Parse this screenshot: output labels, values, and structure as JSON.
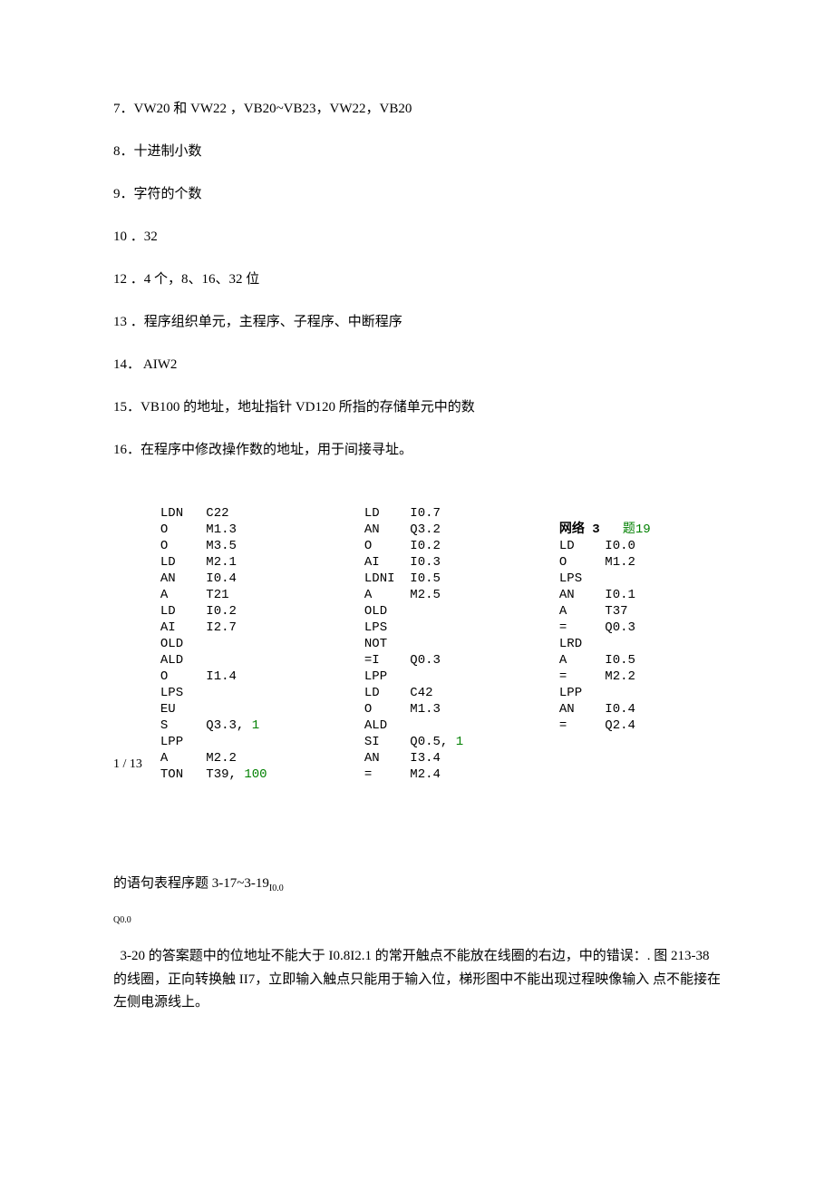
{
  "answers": {
    "a7": "7．VW20 和 VW22 ，VB20~VB23，VW22，VB20",
    "a8": "8．十进制小数",
    "a9": "9．字符的个数",
    "a10": "10 ．32",
    "a12": "12 ．4 个，8、16、32 位",
    "a13": "13 ．程序组织单元，主程序、子程序、中断程序",
    "a14": "14． AIW2",
    "a15": "15．VB100 的地址，地址指针 VD120 所指的存储单元中的数",
    "a16": "16．在程序中修改操作数的地址，用于间接寻址。"
  },
  "page_num": "1 / 13",
  "code_col1": "LDN   C22\nO     M1.3\nO     M3.5\nLD    M2.1\nAN    I0.4\nA     T21\nLD    I0.2\nAI    I2.7\nOLD\nALD\nO     I1.4\nLPS\nEU\nS     Q3.3, ",
  "code_col1_end": "\nLPP\nA     M2.2\nTON   T39, ",
  "code_col1_g1": "1",
  "code_col1_g2": "100",
  "code_col2": "LD    I0.7\nAN    Q3.2\nO     I0.2\nAI    I0.3\nLDNI  I0.5\nA     M2.5\nOLD\nLPS\nNOT\n=I    Q0.3\nLPP\nLD    C42\nO     M1.3\nALD\nSI    Q0.5, ",
  "code_col2_end": "\nAN    I3.4\n=     M2.4",
  "code_col2_g1": "1",
  "code_col3_net": "网络 3",
  "code_col3_q": "   题19",
  "code_col3": "\nLD    I0.0\nO     M1.2\nLPS\nAN    I0.1\nA     T37\n=     Q0.3\nLRD\nA     I0.5\n=     M2.2\nLPP\nAN    I0.4\n=     Q2.4",
  "post1_a": " 的语句表程序题 3-17~3-19",
  "post1_b": "I0.0",
  "post2": "Q0.0",
  "paragraph": " 3-20 的答案题中的位地址不能大于 I0.8I2.1 的常开触点不能放在线圈的右边，中的错误：. 图 213-38 的线圈，正向转换触 II7，立即输入触点只能用于输入位，梯形图中不能出现过程映像输入 点不能接在左侧电源线上。",
  "colors": {
    "text": "#000000",
    "green": "#008000",
    "background": "#ffffff"
  },
  "fonts": {
    "body": "SimSun",
    "mono": "Courier New"
  }
}
